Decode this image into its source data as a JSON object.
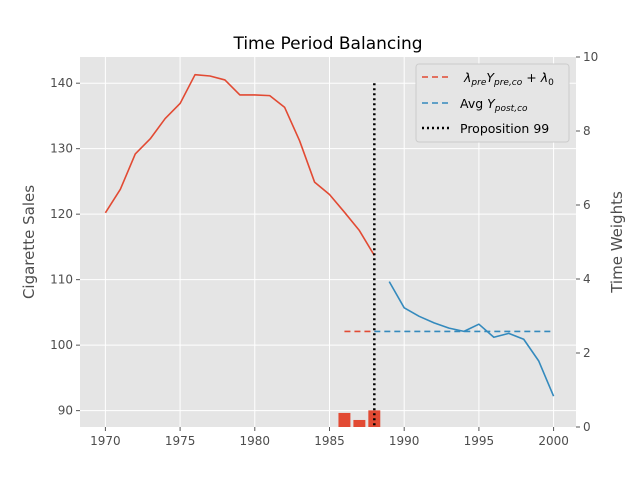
{
  "chart_data": {
    "type": "line",
    "title": "Time Period Balancing",
    "ylabel": "Cigarette Sales",
    "y2label": "Time Weights",
    "xlim": [
      1968.3,
      2001.5
    ],
    "ylim": [
      87.5,
      144.0
    ],
    "y2lim": [
      0,
      10
    ],
    "x_ticks": [
      1970,
      1975,
      1980,
      1985,
      1990,
      1995,
      2000
    ],
    "y_ticks": [
      90,
      100,
      110,
      120,
      130,
      140
    ],
    "y2_ticks": [
      0,
      2,
      4,
      6,
      8,
      10
    ],
    "grid": true,
    "legend_position": "top-right",
    "colors": {
      "pre": "#E24A33",
      "post": "#348ABD",
      "vline": "#000000",
      "plot_bg": "#E5E5E5",
      "grid": "#FFFFFF"
    },
    "series": [
      {
        "key": "pre",
        "x": [
          1970,
          1971,
          1972,
          1973,
          1974,
          1975,
          1976,
          1977,
          1978,
          1979,
          1980,
          1981,
          1982,
          1983,
          1984,
          1985,
          1986,
          1987,
          1988
        ],
        "values": [
          120.2,
          123.8,
          129.2,
          131.5,
          134.6,
          136.9,
          141.3,
          141.1,
          140.5,
          138.2,
          138.2,
          138.1,
          136.3,
          131.2,
          124.9,
          123.0,
          120.3,
          117.5,
          113.7
        ]
      },
      {
        "key": "post",
        "x": [
          1989,
          1990,
          1991,
          1992,
          1993,
          1994,
          1995,
          1996,
          1997,
          1998,
          1999,
          2000
        ],
        "values": [
          109.7,
          105.7,
          104.4,
          103.4,
          102.6,
          102.1,
          103.2,
          101.2,
          101.8,
          100.9,
          97.6,
          92.2
        ]
      }
    ],
    "hlines": [
      {
        "key": "pre_fit",
        "y": 102.1,
        "x": [
          1986,
          1988
        ]
      },
      {
        "key": "post_avg",
        "y": 102.1,
        "x": [
          1988,
          2000
        ]
      }
    ],
    "vline": {
      "x": 1988,
      "y": [
        87.5,
        140.0
      ]
    },
    "weights": {
      "x": [
        1986,
        1987,
        1988
      ],
      "values": [
        0.38,
        0.19,
        0.45
      ]
    },
    "legend": [
      {
        "label": "λpreYpre,co + λ0",
        "style": "dashed",
        "color": "#E24A33"
      },
      {
        "label": "Avg  Ypost,co",
        "style": "dashed",
        "color": "#348ABD"
      },
      {
        "label": "Proposition 99",
        "style": "dotted",
        "color": "#000000"
      }
    ]
  }
}
